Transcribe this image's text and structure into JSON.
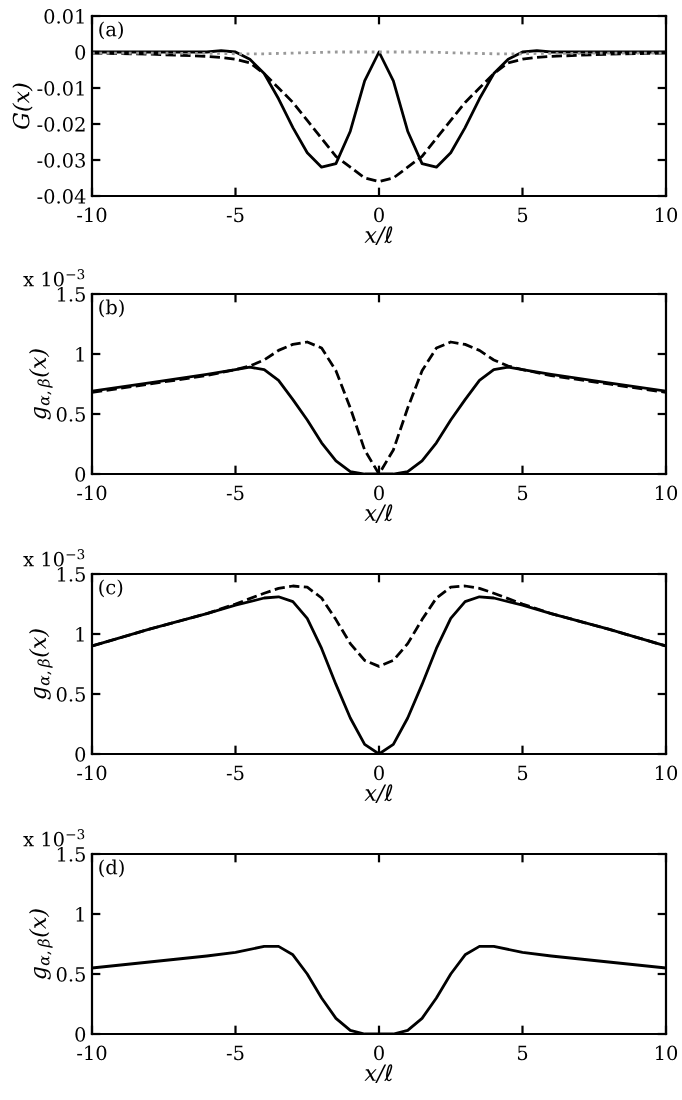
{
  "chart_data": [
    {
      "type": "line",
      "annotations": [
        "(a)"
      ],
      "ylabel": "G(x)",
      "xlabel": "x/ℓ",
      "x": [
        -10,
        -8,
        -6,
        -5.5,
        -5,
        -4.5,
        -4,
        -3.5,
        -3,
        -2.5,
        -2,
        -1.5,
        -1,
        -0.5,
        0,
        0.5,
        1,
        1.5,
        2,
        2.5,
        3,
        3.5,
        4,
        4.5,
        5,
        5.5,
        6,
        8,
        10
      ],
      "series": [
        {
          "color": "#000000",
          "line_style": "solid",
          "values": [
            0,
            0,
            0,
            0.0004,
            0,
            -0.002,
            -0.006,
            -0.013,
            -0.021,
            -0.028,
            -0.032,
            -0.031,
            -0.022,
            -0.008,
            0,
            -0.008,
            -0.022,
            -0.031,
            -0.032,
            -0.028,
            -0.021,
            -0.013,
            -0.006,
            -0.002,
            0,
            0.0004,
            0,
            0,
            0
          ]
        },
        {
          "color": "#000000",
          "line_style": "dashed",
          "values": [
            -0.0003,
            -0.0006,
            -0.0012,
            -0.0015,
            -0.002,
            -0.003,
            -0.006,
            -0.01,
            -0.014,
            -0.019,
            -0.024,
            -0.029,
            -0.032,
            -0.035,
            -0.036,
            -0.035,
            -0.032,
            -0.029,
            -0.024,
            -0.019,
            -0.014,
            -0.01,
            -0.006,
            -0.003,
            -0.002,
            -0.0015,
            -0.0012,
            -0.0006,
            -0.0003
          ]
        },
        {
          "color": "#999999",
          "line_style": "dotted",
          "values": [
            -0.0003,
            -0.0003,
            -0.0004,
            -0.0004,
            -0.0005,
            -0.0005,
            -0.0005,
            -0.0004,
            -0.0003,
            -0.0002,
            -0.0001,
            0,
            0,
            0,
            0,
            0,
            0,
            0,
            -0.0001,
            -0.0002,
            -0.0003,
            -0.0004,
            -0.0005,
            -0.0005,
            -0.0005,
            -0.0004,
            -0.0004,
            -0.0003,
            -0.0003
          ]
        }
      ],
      "xlim": [
        -10,
        10
      ],
      "xticks": [
        -10,
        -5,
        0,
        5,
        10
      ],
      "ylim": [
        -0.04,
        0.01
      ],
      "yticks": [
        -0.04,
        -0.03,
        -0.02,
        -0.01,
        0,
        0.01
      ]
    },
    {
      "type": "line",
      "annotations": [
        "(b)",
        "x 10$^{−3}$"
      ],
      "ylabel": "g$_{α,β}$(x)",
      "xlabel": "x/ℓ",
      "x": [
        -10,
        -8,
        -6,
        -5,
        -4.5,
        -4,
        -3.5,
        -3,
        -2.5,
        -2,
        -1.5,
        -1,
        -0.5,
        0,
        0.5,
        1,
        1.5,
        2,
        2.5,
        3,
        3.5,
        4,
        4.5,
        5,
        6,
        8,
        10
      ],
      "series": [
        {
          "color": "#000000",
          "line_style": "solid",
          "values": [
            0.69,
            0.76,
            0.83,
            0.87,
            0.89,
            0.87,
            0.78,
            0.62,
            0.45,
            0.26,
            0.11,
            0.02,
            0,
            0,
            0,
            0.02,
            0.11,
            0.26,
            0.45,
            0.62,
            0.78,
            0.87,
            0.89,
            0.87,
            0.83,
            0.76,
            0.69
          ]
        },
        {
          "color": "#000000",
          "line_style": "dashed",
          "values": [
            0.68,
            0.75,
            0.82,
            0.87,
            0.9,
            0.95,
            1.03,
            1.08,
            1.1,
            1.05,
            0.86,
            0.55,
            0.2,
            0,
            0.2,
            0.55,
            0.86,
            1.05,
            1.1,
            1.08,
            1.03,
            0.95,
            0.9,
            0.87,
            0.82,
            0.75,
            0.68
          ]
        }
      ],
      "xlim": [
        -10,
        10
      ],
      "xticks": [
        -10,
        -5,
        0,
        5,
        10
      ],
      "ylim": [
        0,
        1.5
      ],
      "yticks": [
        0,
        0.5,
        1,
        1.5
      ]
    },
    {
      "type": "line",
      "annotations": [
        "(c)",
        "x 10$^{−3}$"
      ],
      "ylabel": "g$_{α,β}$(x)",
      "xlabel": "x/ℓ",
      "x": [
        -10,
        -8,
        -6,
        -5,
        -4,
        -3.5,
        -3,
        -2.5,
        -2,
        -1.5,
        -1,
        -0.5,
        0,
        0.5,
        1,
        1.5,
        2,
        2.5,
        3,
        3.5,
        4,
        5,
        6,
        8,
        10
      ],
      "series": [
        {
          "color": "#000000",
          "line_style": "solid",
          "values": [
            0.9,
            1.04,
            1.17,
            1.24,
            1.3,
            1.31,
            1.27,
            1.13,
            0.88,
            0.58,
            0.3,
            0.08,
            0,
            0.08,
            0.3,
            0.58,
            0.88,
            1.13,
            1.27,
            1.31,
            1.3,
            1.24,
            1.17,
            1.04,
            0.9
          ]
        },
        {
          "color": "#000000",
          "line_style": "dashed",
          "values": [
            0.9,
            1.04,
            1.17,
            1.25,
            1.34,
            1.38,
            1.4,
            1.39,
            1.3,
            1.12,
            0.92,
            0.78,
            0.73,
            0.78,
            0.92,
            1.12,
            1.3,
            1.39,
            1.4,
            1.38,
            1.34,
            1.25,
            1.17,
            1.04,
            0.9
          ]
        }
      ],
      "xlim": [
        -10,
        10
      ],
      "xticks": [
        -10,
        -5,
        0,
        5,
        10
      ],
      "ylim": [
        0,
        1.5
      ],
      "yticks": [
        0,
        0.5,
        1,
        1.5
      ]
    },
    {
      "type": "line",
      "annotations": [
        "(d)",
        "x 10$^{−3}$"
      ],
      "ylabel": "g$_{α,β}$(x)",
      "xlabel": "x/ℓ",
      "x": [
        -10,
        -8,
        -6,
        -5,
        -4,
        -3.5,
        -3,
        -2.5,
        -2,
        -1.5,
        -1,
        -0.5,
        0,
        0.5,
        1,
        1.5,
        2,
        2.5,
        3,
        3.5,
        4,
        5,
        6,
        8,
        10
      ],
      "series": [
        {
          "color": "#000000",
          "line_style": "solid",
          "values": [
            0.55,
            0.6,
            0.65,
            0.68,
            0.73,
            0.73,
            0.66,
            0.5,
            0.3,
            0.13,
            0.03,
            0,
            0,
            0,
            0.03,
            0.13,
            0.3,
            0.5,
            0.66,
            0.73,
            0.73,
            0.68,
            0.65,
            0.6,
            0.55
          ]
        }
      ],
      "xlim": [
        -10,
        10
      ],
      "xticks": [
        -10,
        -5,
        0,
        5,
        10
      ],
      "ylim": [
        0,
        1.5
      ],
      "yticks": [
        0,
        0.5,
        1,
        1.5
      ]
    }
  ]
}
